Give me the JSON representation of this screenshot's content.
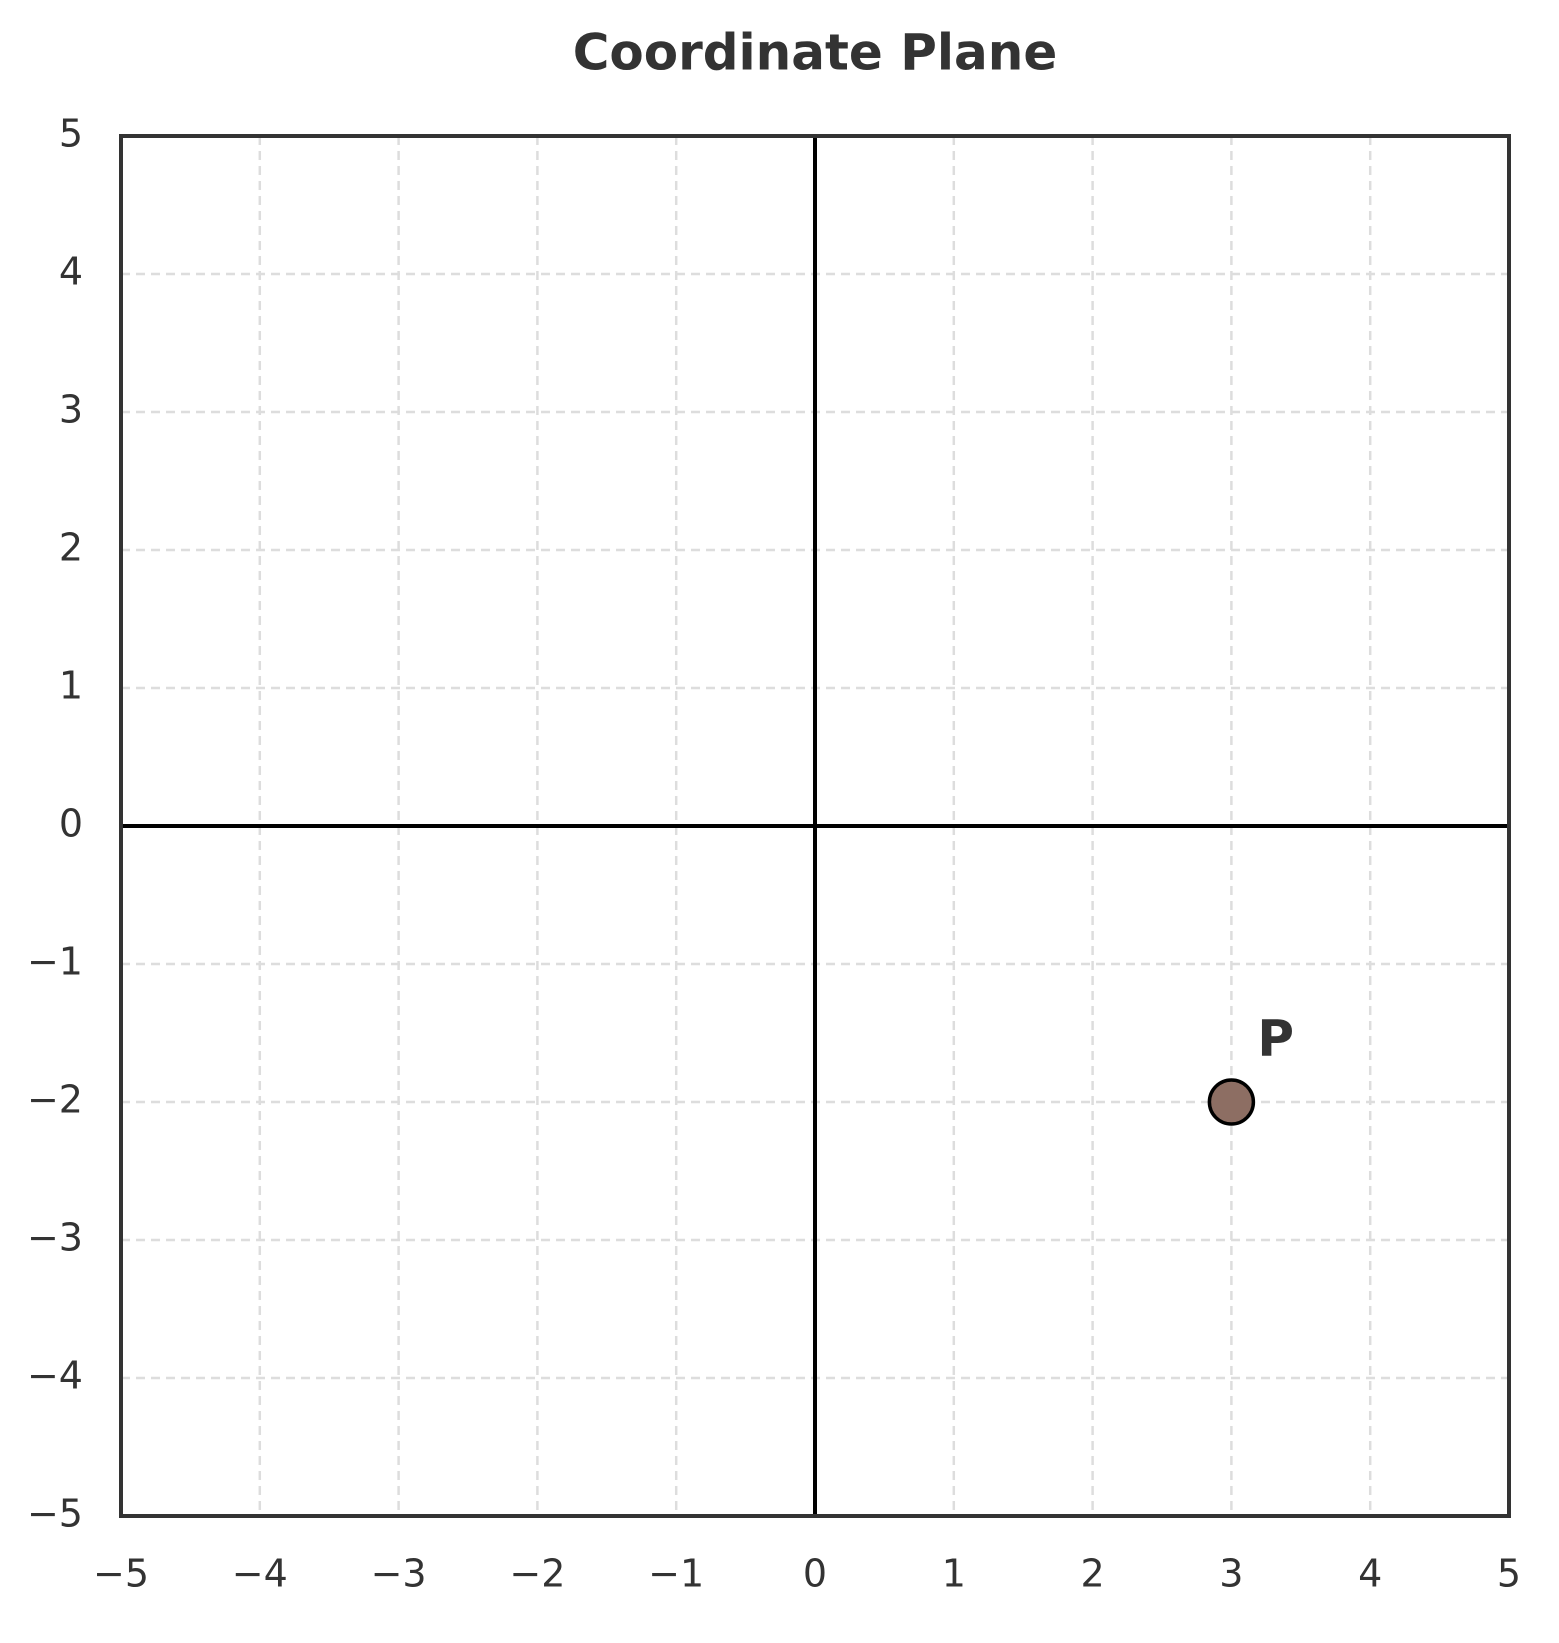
{
  "chart_data": {
    "type": "scatter",
    "title": "Coordinate Plane",
    "x": [
      3
    ],
    "values": [
      -2
    ],
    "point_labels": [
      "P"
    ],
    "color": "#8d6e63",
    "xlim": [
      -5,
      5
    ],
    "ylim": [
      -5,
      5
    ],
    "xticks": [
      {
        "value": -5,
        "label": "−5"
      },
      {
        "value": -4,
        "label": "−4"
      },
      {
        "value": -3,
        "label": "−3"
      },
      {
        "value": -2,
        "label": "−2"
      },
      {
        "value": -1,
        "label": "−1"
      },
      0,
      1,
      2,
      3,
      4,
      5
    ],
    "yticks": [
      {
        "value": -5,
        "label": "−5"
      },
      {
        "value": -4,
        "label": "−4"
      },
      {
        "value": -3,
        "label": "−3"
      },
      {
        "value": -2,
        "label": "−2"
      },
      {
        "value": -1,
        "label": "−1"
      },
      0,
      1,
      2,
      3,
      4,
      5
    ],
    "grid": true
  }
}
